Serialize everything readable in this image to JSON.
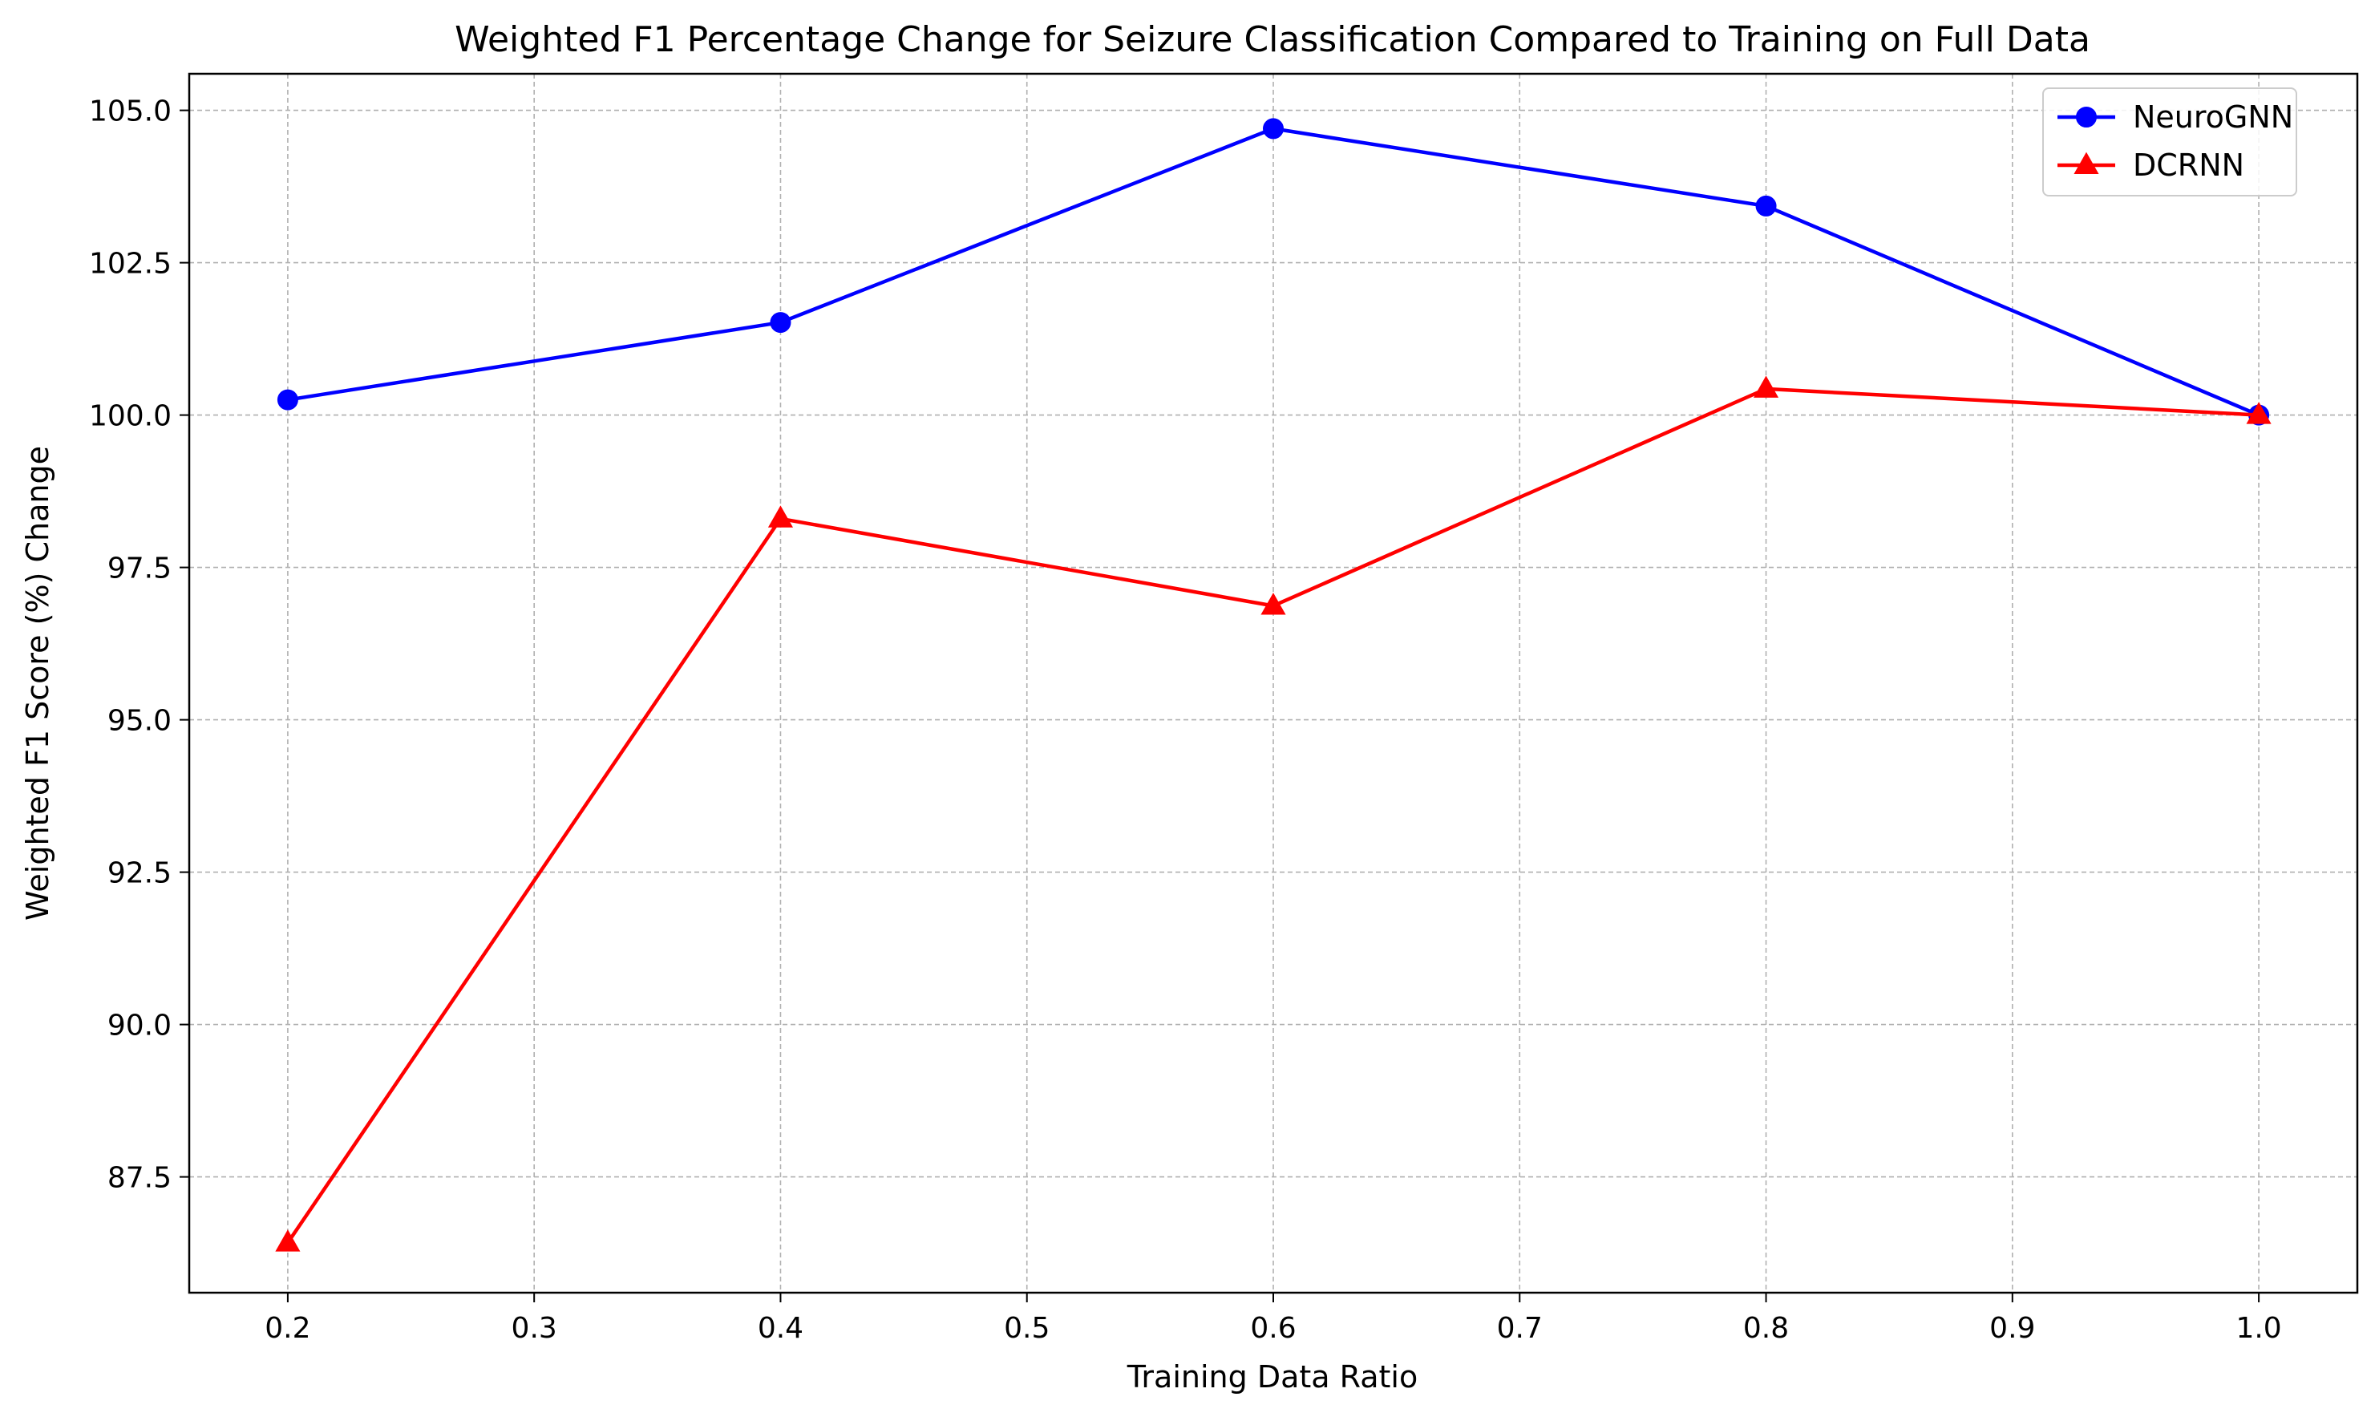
{
  "chart_data": {
    "type": "line",
    "title": "Weighted F1 Percentage Change for Seizure Classification Compared to Training on Full Data",
    "xlabel": "Training Data Ratio",
    "ylabel": "Weighted F1 Score (%) Change",
    "x": [
      0.2,
      0.4,
      0.6,
      0.8,
      1.0
    ],
    "xlim": [
      0.16,
      1.04
    ],
    "ylim": [
      85.6,
      105.6
    ],
    "xticks": [
      0.2,
      0.3,
      0.4,
      0.5,
      0.6,
      0.7,
      0.8,
      0.9,
      1.0
    ],
    "xtick_labels": [
      "0.2",
      "0.3",
      "0.4",
      "0.5",
      "0.6",
      "0.7",
      "0.8",
      "0.9",
      "1.0"
    ],
    "yticks": [
      87.5,
      90.0,
      92.5,
      95.0,
      97.5,
      100.0,
      102.5,
      105.0
    ],
    "ytick_labels": [
      "87.5",
      "90.0",
      "92.5",
      "95.0",
      "97.5",
      "100.0",
      "102.5",
      "105.0"
    ],
    "grid": true,
    "legend_position": "top-right",
    "series": [
      {
        "name": "NeuroGNN",
        "color": "#0000ff",
        "marker": "circle",
        "values": [
          100.25,
          101.52,
          104.7,
          103.43,
          100.0
        ]
      },
      {
        "name": "DCRNN",
        "color": "#ff0000",
        "marker": "triangle",
        "values": [
          86.42,
          98.3,
          96.87,
          100.43,
          100.0
        ]
      }
    ]
  }
}
